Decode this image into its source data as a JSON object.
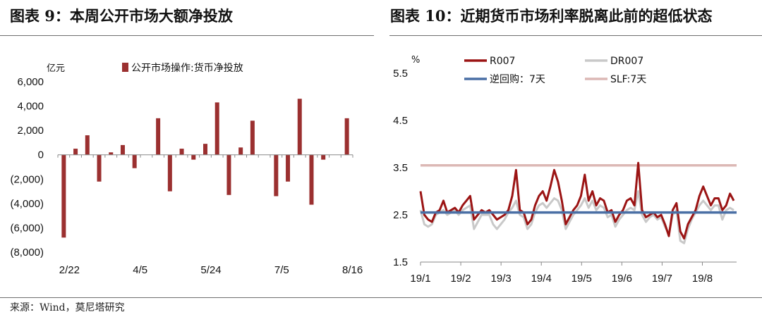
{
  "left_title": "图表 9：本周公开市场大额净投放",
  "right_title": "图表 10：近期货币市场利率脱离此前的超低状态",
  "source": "来源：Wind，莫尼塔研究",
  "colors": {
    "bar": "#9b3030",
    "r007": "#9b1414",
    "dr007": "#c9c9c9",
    "reverse_repo": "#4a6fa5",
    "slf": "#dcb8b5",
    "negative_tick": "#e0201a",
    "axis": "#888888"
  },
  "chart_data": [
    {
      "type": "bar",
      "unit": "亿元",
      "legend": "公开市场操作:货币净投放",
      "legend_position": "top",
      "ylim": [
        -8000,
        6000
      ],
      "yticks": [
        6000,
        4000,
        2000,
        0,
        -2000,
        -4000,
        -6000,
        -8000
      ],
      "ytick_labels": [
        "6,000",
        "4,000",
        "2,000",
        "0",
        "(2,000)",
        "(4,000)",
        "(6,000)",
        "(8,000)"
      ],
      "xtick_labels": [
        "2/22",
        "4/5",
        "5/24",
        "7/5",
        "8/16"
      ],
      "xtick_index": [
        0,
        6,
        12,
        18,
        24
      ],
      "values": [
        -6800,
        500,
        1600,
        -2200,
        200,
        800,
        -1100,
        0,
        3000,
        -3000,
        500,
        -400,
        900,
        4300,
        -3300,
        600,
        2800,
        0,
        -3400,
        -2200,
        4600,
        -4100,
        -400,
        0,
        3000
      ]
    },
    {
      "type": "line",
      "unit": "%",
      "ylim": [
        1.5,
        5.5
      ],
      "yticks": [
        5.5,
        4.5,
        3.5,
        2.5,
        1.5
      ],
      "ytick_labels": [
        "5.5",
        "4.5",
        "3.5",
        "2.5",
        "1.5"
      ],
      "xtick_labels": [
        "19/1",
        "19/2",
        "19/3",
        "19/4",
        "19/5",
        "19/6",
        "19/7",
        "19/8"
      ],
      "legend": [
        "R007",
        "DR007",
        "逆回购：7天",
        "SLF:7天"
      ],
      "legend_position": "top",
      "series": [
        {
          "name": "R007",
          "values": [
            3.0,
            2.5,
            2.4,
            2.35,
            2.55,
            2.6,
            2.8,
            2.55,
            2.6,
            2.65,
            2.55,
            2.7,
            2.8,
            2.9,
            2.4,
            2.5,
            2.6,
            2.55,
            2.6,
            2.5,
            2.4,
            2.45,
            2.5,
            2.6,
            2.9,
            3.45,
            2.6,
            2.55,
            2.3,
            2.4,
            2.7,
            2.9,
            3.0,
            2.8,
            3.1,
            3.45,
            3.2,
            2.8,
            2.3,
            2.45,
            2.6,
            2.7,
            2.9,
            3.35,
            2.8,
            3.0,
            2.7,
            2.85,
            2.8,
            2.55,
            2.6,
            2.35,
            2.5,
            2.6,
            2.8,
            2.85,
            2.7,
            3.6,
            2.6,
            2.45,
            2.5,
            2.55,
            2.45,
            2.5,
            2.3,
            2.05,
            2.6,
            2.75,
            2.15,
            2.0,
            2.3,
            2.45,
            2.6,
            2.9,
            3.1,
            2.9,
            2.7,
            2.85,
            2.85,
            2.6,
            2.7,
            2.95,
            2.8
          ]
        },
        {
          "name": "DR007",
          "values": [
            2.6,
            2.3,
            2.25,
            2.3,
            2.5,
            2.55,
            2.6,
            2.5,
            2.55,
            2.6,
            2.5,
            2.6,
            2.65,
            2.7,
            2.2,
            2.35,
            2.5,
            2.5,
            2.5,
            2.3,
            2.2,
            2.3,
            2.4,
            2.55,
            2.65,
            2.8,
            2.5,
            2.45,
            2.2,
            2.3,
            2.55,
            2.7,
            2.75,
            2.65,
            2.75,
            2.85,
            2.8,
            2.6,
            2.2,
            2.35,
            2.5,
            2.6,
            2.7,
            2.85,
            2.65,
            2.8,
            2.6,
            2.7,
            2.65,
            2.45,
            2.5,
            2.25,
            2.4,
            2.5,
            2.6,
            2.65,
            2.6,
            3.0,
            2.5,
            2.35,
            2.45,
            2.5,
            2.4,
            2.45,
            2.25,
            2.1,
            2.5,
            2.6,
            1.95,
            1.9,
            2.2,
            2.4,
            2.55,
            2.7,
            2.8,
            2.7,
            2.6,
            2.7,
            2.7,
            2.4,
            2.6,
            2.65,
            2.6
          ]
        },
        {
          "name": "逆回购：7天",
          "values": [
            2.55,
            2.55
          ]
        },
        {
          "name": "SLF:7天",
          "values": [
            3.55,
            3.55
          ]
        }
      ]
    }
  ]
}
